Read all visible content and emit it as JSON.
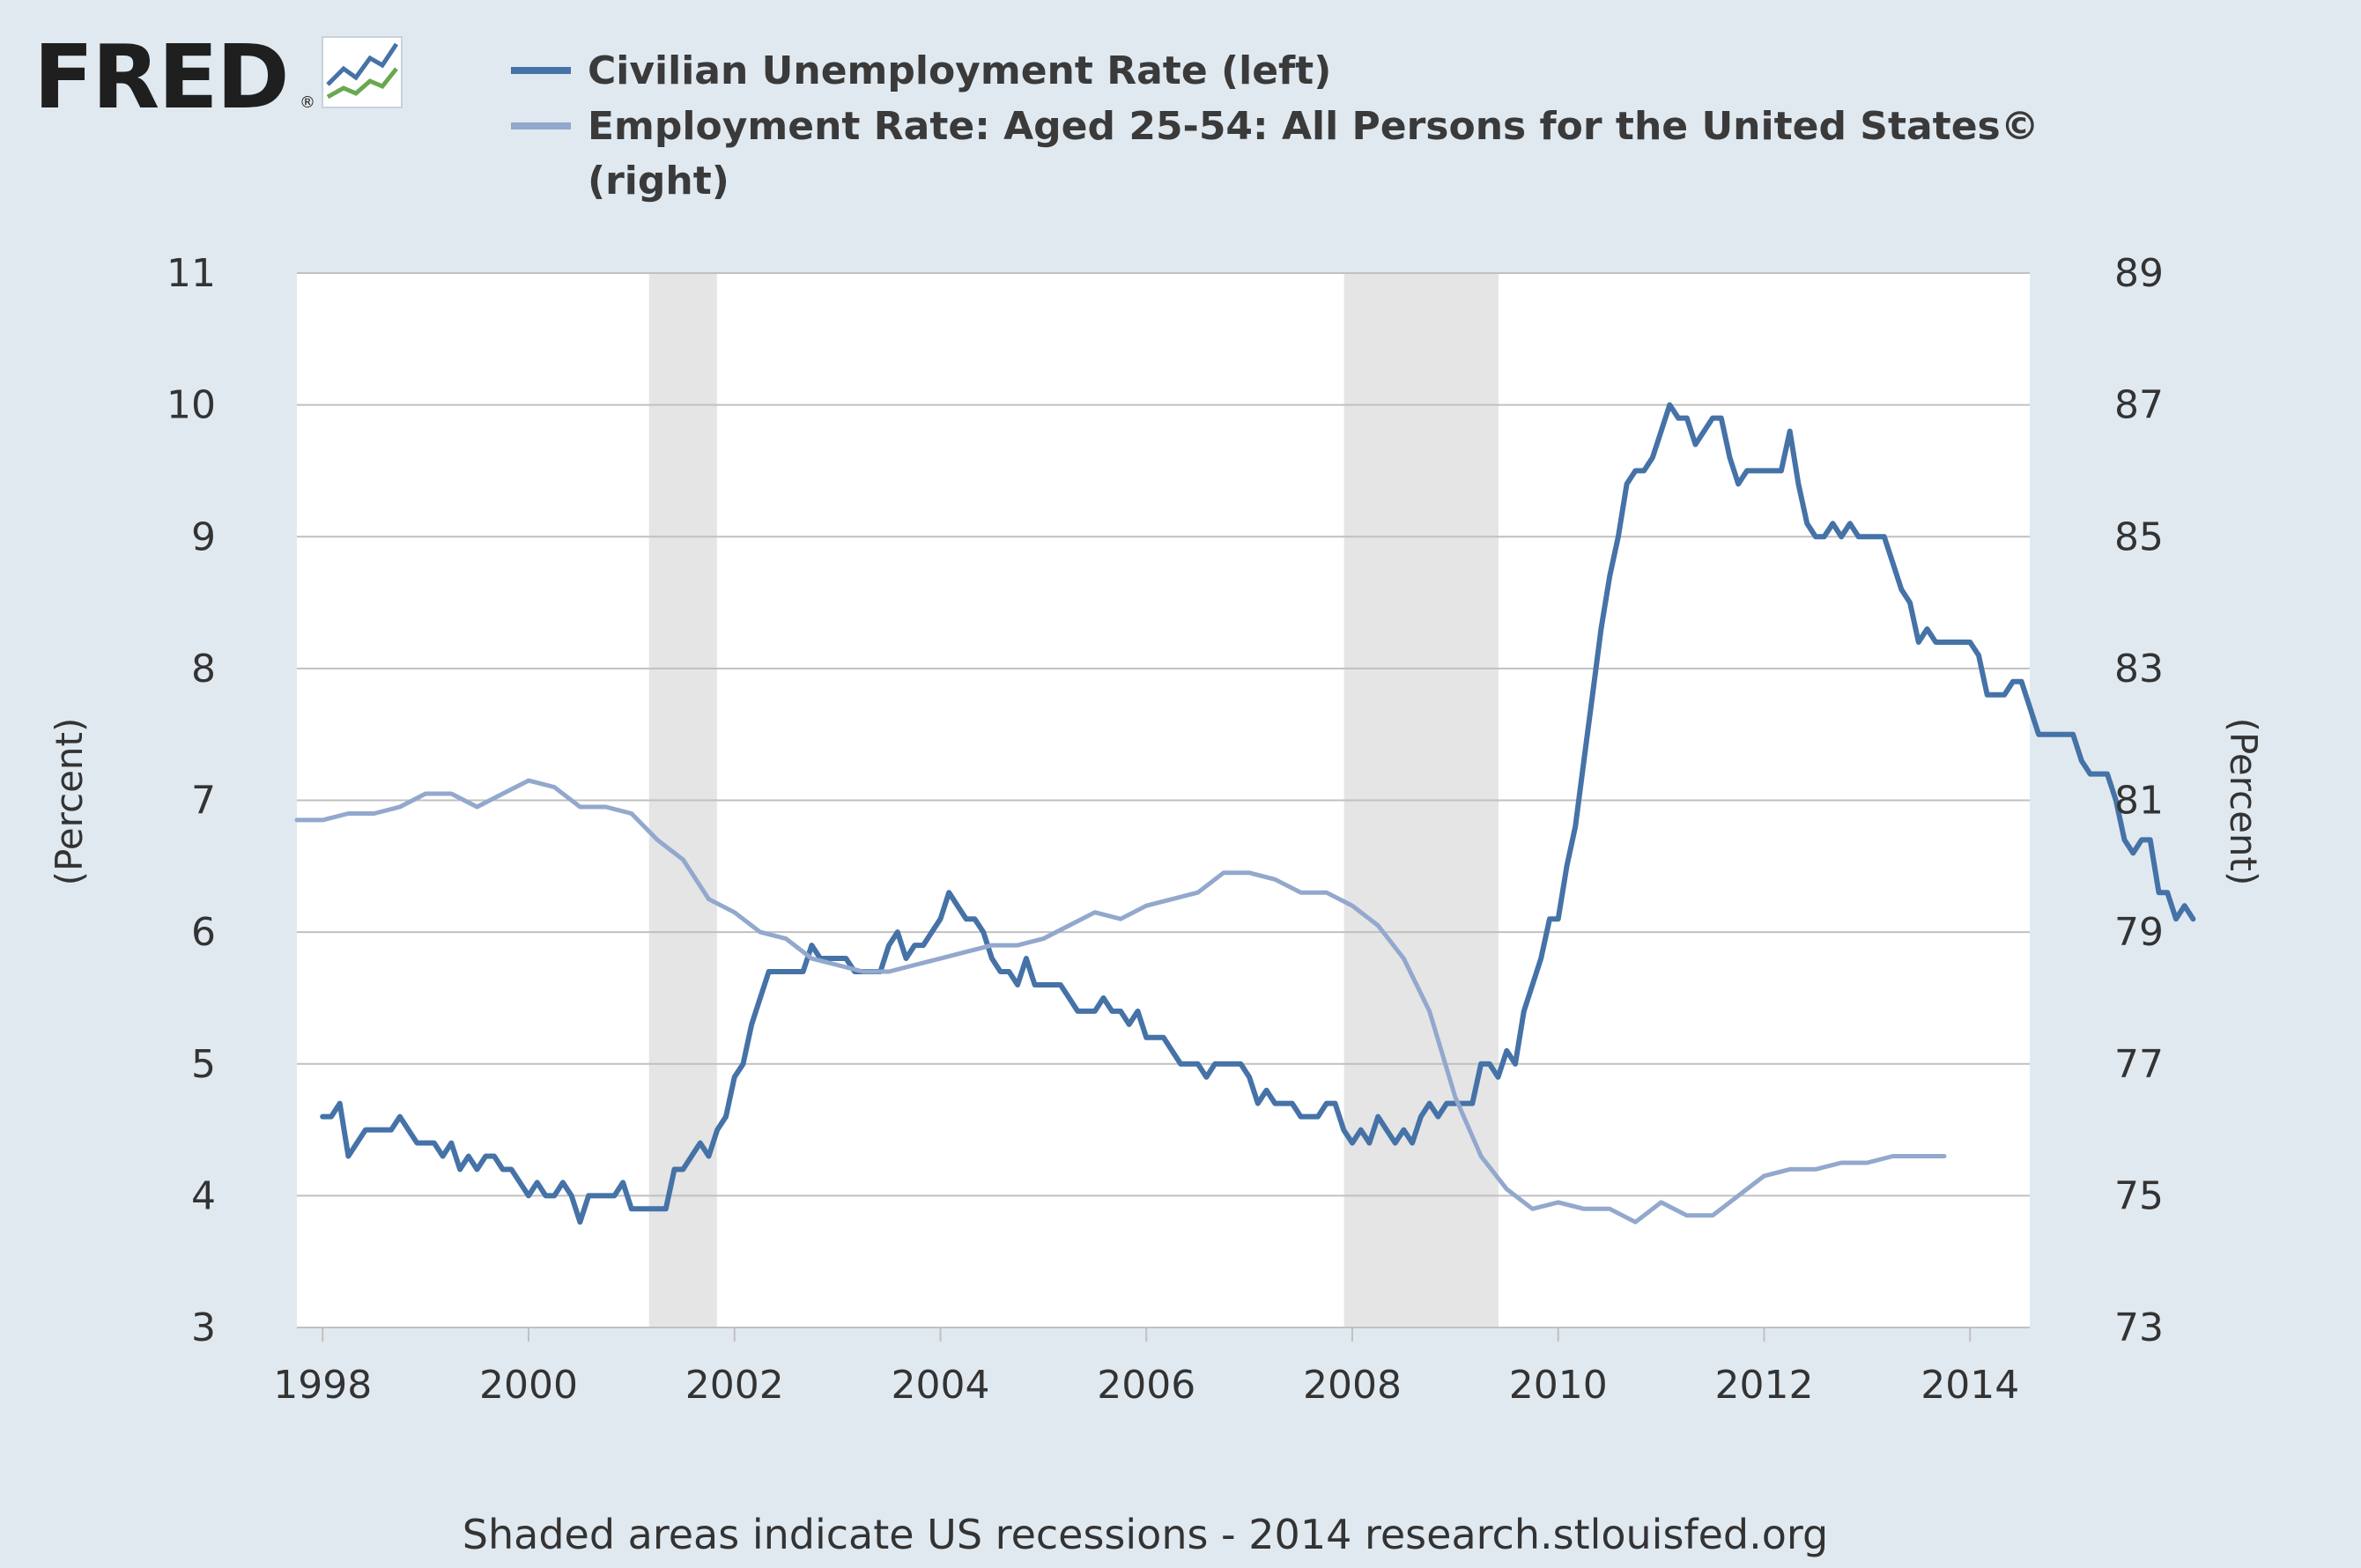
{
  "logo": {
    "text": "FRED",
    "mark": "®"
  },
  "legend": [
    {
      "label": "Civilian Unemployment Rate (left)",
      "color": "#4572a7"
    },
    {
      "label_line1": "Employment Rate: Aged 25-54: All Persons for the United States©",
      "label_line2": "(right)",
      "color": "#92a8cd"
    }
  ],
  "footer": "Shaded areas indicate US recessions - 2014 research.stlouisfed.org",
  "chart_data": {
    "type": "line",
    "xlim": [
      1997.75,
      2014.58
    ],
    "x_ticks": [
      "1998",
      "2000",
      "2002",
      "2004",
      "2006",
      "2008",
      "2010",
      "2012",
      "2014"
    ],
    "x_tick_values": [
      1998,
      2000,
      2002,
      2004,
      2006,
      2008,
      2010,
      2012,
      2014
    ],
    "left_axis": {
      "label": "(Percent)",
      "ylim": [
        3,
        11
      ],
      "ticks": [
        "11",
        "10",
        "9",
        "8",
        "7",
        "6",
        "5",
        "4",
        "3"
      ],
      "tick_values": [
        11,
        10,
        9,
        8,
        7,
        6,
        5,
        4,
        3
      ]
    },
    "right_axis": {
      "label": "(Percent)",
      "ylim": [
        73,
        89
      ],
      "ticks": [
        "89",
        "87",
        "85",
        "83",
        "81",
        "79",
        "77",
        "75",
        "73"
      ],
      "tick_values": [
        89,
        87,
        85,
        83,
        81,
        79,
        77,
        75,
        73
      ]
    },
    "grid": "horizontal",
    "recessions": [
      [
        2001.17,
        2001.83
      ],
      [
        2007.92,
        2009.42
      ]
    ],
    "recession_color": "#e5e5e5",
    "series": [
      {
        "name": "Civilian Unemployment Rate (left)",
        "axis": "left",
        "color": "#4572a7",
        "start": 1998.0,
        "step": 0.0833333,
        "values": [
          4.6,
          4.6,
          4.7,
          4.3,
          4.4,
          4.5,
          4.5,
          4.5,
          4.5,
          4.6,
          4.5,
          4.4,
          4.4,
          4.4,
          4.3,
          4.4,
          4.2,
          4.3,
          4.2,
          4.3,
          4.3,
          4.2,
          4.2,
          4.1,
          4.0,
          4.1,
          4.0,
          4.0,
          4.1,
          4.0,
          3.8,
          4.0,
          4.0,
          4.0,
          4.0,
          4.1,
          3.9,
          3.9,
          3.9,
          3.9,
          3.9,
          4.2,
          4.2,
          4.3,
          4.4,
          4.3,
          4.5,
          4.6,
          4.9,
          5.0,
          5.3,
          5.5,
          5.7,
          5.7,
          5.7,
          5.7,
          5.7,
          5.9,
          5.8,
          5.8,
          5.8,
          5.8,
          5.7,
          5.7,
          5.7,
          5.7,
          5.9,
          6.0,
          5.8,
          5.9,
          5.9,
          6.0,
          6.1,
          6.3,
          6.2,
          6.1,
          6.1,
          6.0,
          5.8,
          5.7,
          5.7,
          5.6,
          5.8,
          5.6,
          5.6,
          5.6,
          5.6,
          5.5,
          5.4,
          5.4,
          5.4,
          5.5,
          5.4,
          5.4,
          5.3,
          5.4,
          5.2,
          5.2,
          5.2,
          5.1,
          5.0,
          5.0,
          5.0,
          4.9,
          5.0,
          5.0,
          5.0,
          5.0,
          4.9,
          4.7,
          4.8,
          4.7,
          4.7,
          4.7,
          4.6,
          4.6,
          4.6,
          4.7,
          4.7,
          4.5,
          4.4,
          4.5,
          4.4,
          4.6,
          4.5,
          4.4,
          4.5,
          4.4,
          4.6,
          4.7,
          4.6,
          4.7,
          4.7,
          4.7,
          4.7,
          5.0,
          5.0,
          4.9,
          5.1,
          5.0,
          5.4,
          5.6,
          5.8,
          6.1,
          6.1,
          6.5,
          6.8,
          7.3,
          7.8,
          8.3,
          8.7,
          9.0,
          9.4,
          9.5,
          9.5,
          9.6,
          9.8,
          10.0,
          9.9,
          9.9,
          9.7,
          9.8,
          9.9,
          9.9,
          9.6,
          9.4,
          9.5,
          9.5,
          9.5,
          9.5,
          9.5,
          9.8,
          9.4,
          9.1,
          9.0,
          9.0,
          9.1,
          9.0,
          9.1,
          9.0,
          9.0,
          9.0,
          9.0,
          8.8,
          8.6,
          8.5,
          8.2,
          8.3,
          8.2,
          8.2,
          8.2,
          8.2,
          8.2,
          8.1,
          7.8,
          7.8,
          7.8,
          7.9,
          7.9,
          7.7,
          7.5,
          7.5,
          7.5,
          7.5,
          7.5,
          7.3,
          7.2,
          7.2,
          7.2,
          7.0,
          6.7,
          6.6,
          6.7,
          6.7,
          6.3,
          6.3,
          6.1,
          6.2,
          6.1
        ]
      },
      {
        "name": "Employment Rate: Aged 25-54: All Persons for the United States© (right)",
        "axis": "right",
        "color": "#92a8cd",
        "x": [
          1997.75,
          1998.0,
          1998.25,
          1998.5,
          1998.75,
          1999.0,
          1999.25,
          1999.5,
          1999.75,
          2000.0,
          2000.25,
          2000.5,
          2000.75,
          2001.0,
          2001.25,
          2001.5,
          2001.75,
          2002.0,
          2002.25,
          2002.5,
          2002.75,
          2003.0,
          2003.25,
          2003.5,
          2003.75,
          2004.0,
          2004.25,
          2004.5,
          2004.75,
          2005.0,
          2005.25,
          2005.5,
          2005.75,
          2006.0,
          2006.25,
          2006.5,
          2006.75,
          2007.0,
          2007.25,
          2007.5,
          2007.75,
          2008.0,
          2008.25,
          2008.5,
          2008.75,
          2009.0,
          2009.25,
          2009.5,
          2009.75,
          2010.0,
          2010.25,
          2010.5,
          2010.75,
          2011.0,
          2011.25,
          2011.5,
          2011.75,
          2012.0,
          2012.25,
          2012.5,
          2012.75,
          2013.0,
          2013.25,
          2013.5,
          2013.75
        ],
        "values": [
          80.7,
          80.7,
          80.8,
          80.8,
          80.9,
          81.1,
          81.1,
          80.9,
          81.1,
          81.3,
          81.2,
          80.9,
          80.9,
          80.8,
          80.4,
          80.1,
          79.5,
          79.3,
          79.0,
          78.9,
          78.6,
          78.5,
          78.4,
          78.4,
          78.5,
          78.6,
          78.7,
          78.8,
          78.8,
          78.9,
          79.1,
          79.3,
          79.2,
          79.4,
          79.5,
          79.6,
          79.9,
          79.9,
          79.8,
          79.6,
          79.6,
          79.4,
          79.1,
          78.6,
          77.8,
          76.5,
          75.6,
          75.1,
          74.8,
          74.9,
          74.8,
          74.8,
          74.6,
          74.9,
          74.7,
          74.7,
          75.0,
          75.3,
          75.4,
          75.4,
          75.5,
          75.5,
          75.6,
          75.6,
          75.6
        ]
      }
    ]
  }
}
